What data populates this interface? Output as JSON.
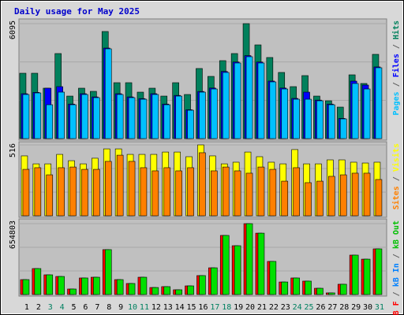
{
  "title": "Daily usage for May 2025",
  "separator": " / ",
  "categories": [
    "1",
    "2",
    "3",
    "4",
    "5",
    "6",
    "7",
    "8",
    "9",
    "10",
    "11",
    "12",
    "13",
    "14",
    "15",
    "16",
    "17",
    "18",
    "19",
    "20",
    "21",
    "22",
    "23",
    "24",
    "25",
    "26",
    "27",
    "28",
    "29",
    "30",
    "31"
  ],
  "category_colors": [
    "#000000",
    "#000000",
    "#008060",
    "#008060",
    "#000000",
    "#000000",
    "#000000",
    "#000000",
    "#000000",
    "#008060",
    "#008060",
    "#000000",
    "#000000",
    "#000000",
    "#000000",
    "#000000",
    "#008060",
    "#008060",
    "#000000",
    "#000000",
    "#000000",
    "#000000",
    "#000000",
    "#008060",
    "#008060",
    "#000000",
    "#000000",
    "#000000",
    "#000000",
    "#000000",
    "#008060"
  ],
  "chart_data": [
    {
      "type": "bar",
      "ylim": [
        0,
        6095
      ],
      "yticks": [
        6095
      ],
      "series": [
        {
          "name": "Hits",
          "color": "#00805c",
          "values": [
            3465,
            3465,
            2672,
            4509,
            2254,
            2672,
            2505,
            5678,
            2964,
            2964,
            2463,
            2672,
            2254,
            2964,
            2338,
            3716,
            3298,
            4133,
            4509,
            6095,
            4968,
            4300,
            3507,
            2755,
            3340,
            2254,
            2004,
            1670,
            3381,
            2922,
            4467
          ]
        },
        {
          "name": "Files",
          "color": "#0000ff",
          "values": [
            2380,
            2450,
            2672,
            2755,
            1830,
            2380,
            2210,
            4800,
            2380,
            2210,
            2120,
            2380,
            1830,
            2290,
            1530,
            2500,
            2680,
            3560,
            4060,
            4400,
            4060,
            3050,
            2680,
            2130,
            2463,
            2040,
            1830,
            1070,
            3047,
            2839,
            3800
          ]
        },
        {
          "name": "Pages",
          "color": "#00c0ff",
          "values": [
            2338,
            2421,
            1795,
            2463,
            1795,
            2338,
            2171,
            4759,
            2338,
            2171,
            2087,
            2338,
            1795,
            2254,
            1503,
            2463,
            2630,
            3507,
            4008,
            4342,
            4008,
            3006,
            2630,
            2087,
            2087,
            2004,
            1795,
            1044,
            2922,
            2630,
            3757
          ]
        }
      ]
    },
    {
      "type": "bar",
      "ylim": [
        0,
        516
      ],
      "yticks": [
        516
      ],
      "series": [
        {
          "name": "Visits",
          "color": "#ffff00",
          "values": [
            436,
            378,
            378,
            447,
            401,
            378,
            419,
            487,
            487,
            447,
            447,
            447,
            464,
            464,
            430,
            516,
            436,
            378,
            390,
            464,
            430,
            390,
            378,
            482,
            378,
            378,
            407,
            407,
            390,
            384,
            390
          ]
        },
        {
          "name": "Sites",
          "color": "#ff8000",
          "values": [
            338,
            350,
            298,
            350,
            355,
            338,
            338,
            396,
            441,
            396,
            350,
            327,
            350,
            327,
            350,
            459,
            327,
            355,
            327,
            310,
            355,
            338,
            252,
            350,
            241,
            252,
            287,
            298,
            310,
            310,
            264
          ]
        }
      ]
    },
    {
      "type": "bar",
      "ylim": [
        0,
        654803
      ],
      "yticks": [
        654803
      ],
      "legend": [
        {
          "name": "kB F",
          "color": "#ff0000"
        },
        {
          "name": "kB In",
          "color": "#0080ff"
        },
        {
          "name": "kB Out",
          "color": "#00c000"
        }
      ],
      "series": [
        {
          "name": "kB F",
          "color": "#ff0000",
          "values": [
            138000,
            240000,
            182000,
            167000,
            51000,
            153000,
            160000,
            415000,
            138000,
            102000,
            160000,
            65000,
            73000,
            44000,
            80000,
            175000,
            247000,
            546000,
            451000,
            654803,
            567000,
            306000,
            116000,
            153000,
            124000,
            58000,
            15000,
            95000,
            364000,
            327000,
            422000
          ]
        },
        {
          "name": "kB Out",
          "color": "#00e000",
          "values": [
            138000,
            240000,
            182000,
            167000,
            51000,
            153000,
            160000,
            415000,
            138000,
            102000,
            160000,
            65000,
            73000,
            44000,
            80000,
            175000,
            247000,
            546000,
            451000,
            654803,
            567000,
            306000,
            116000,
            153000,
            124000,
            58000,
            15000,
            95000,
            364000,
            327000,
            422000
          ]
        }
      ]
    }
  ]
}
